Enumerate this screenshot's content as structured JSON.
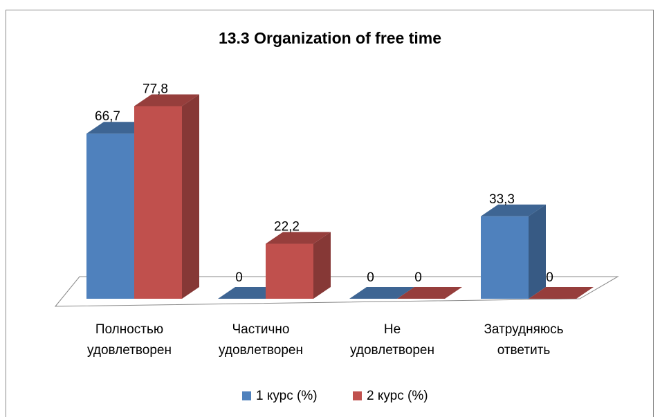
{
  "chart_data": {
    "type": "bar3d",
    "title": "13.3 Organization of free time",
    "categories": [
      "Полностью\nудовлетворен",
      "Частично\nудовлетворен",
      "Не\nудовлетворен",
      "Затрудняюсь\nответить"
    ],
    "series": [
      {
        "name": "1 курс (%)",
        "color": "#4f81bd",
        "values": [
          66.7,
          0,
          0,
          33.3
        ],
        "value_labels": [
          "66,7",
          "0",
          "0",
          "33,3"
        ]
      },
      {
        "name": "2 курс (%)",
        "color": "#c0504d",
        "values": [
          77.8,
          22.2,
          0,
          0
        ],
        "value_labels": [
          "77,8",
          "22,2",
          "0",
          "0"
        ]
      }
    ],
    "legend": "bottom"
  }
}
